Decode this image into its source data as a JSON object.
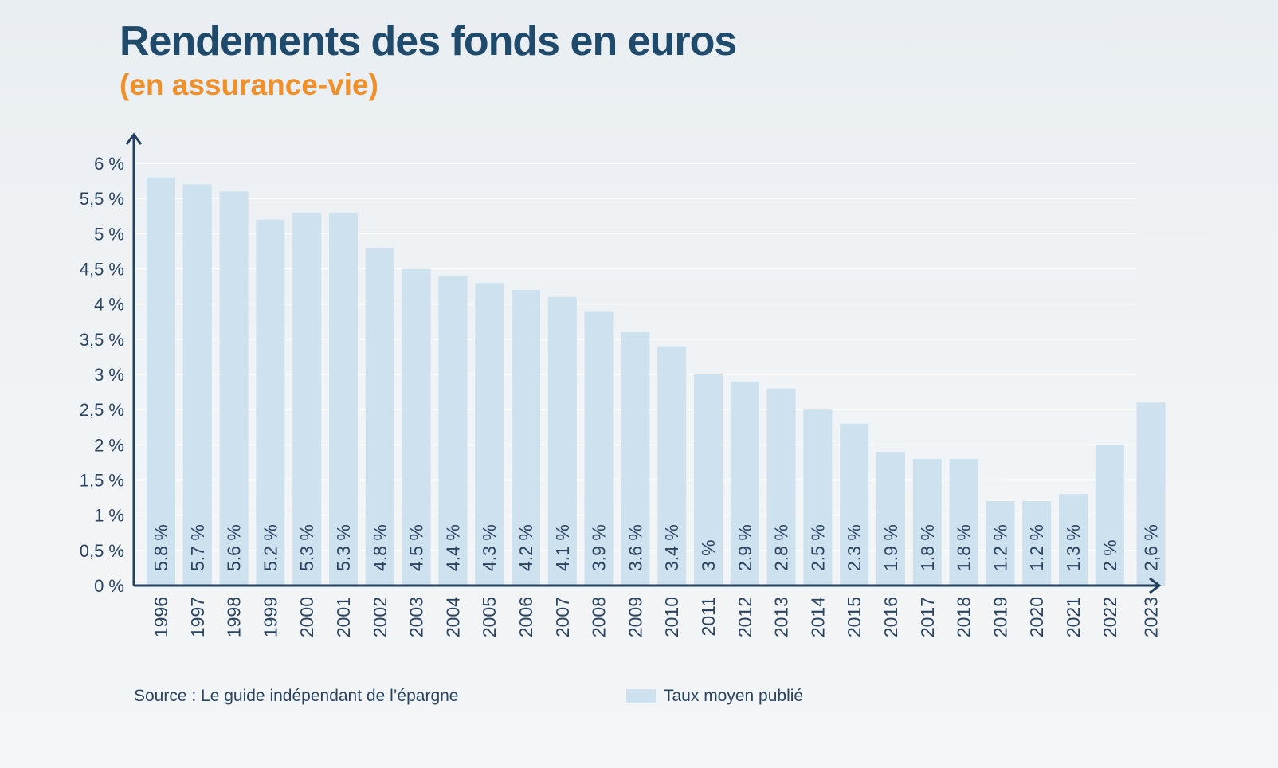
{
  "title": "Rendements des fonds en euros",
  "subtitle": "(en assurance-vie)",
  "source": "Source : Le guide indépendant de l’épargne",
  "legend_label": "Taux moyen publié",
  "colors": {
    "title": "#1f4a6b",
    "subtitle": "#f0902a",
    "bar": "#cde1ef",
    "axis": "#24415f",
    "text": "#2a4460",
    "grid": "#ffffff"
  },
  "chart_data": {
    "type": "bar",
    "title": "Rendements des fonds en euros",
    "subtitle": "(en assurance-vie)",
    "xlabel": "",
    "ylabel": "",
    "ylim": [
      0,
      6
    ],
    "grid": true,
    "legend": "bottom",
    "y_ticks": [
      0,
      0.5,
      1,
      1.5,
      2,
      2.5,
      3,
      3.5,
      4,
      4.5,
      5,
      5.5,
      6
    ],
    "y_tick_labels": [
      "0 %",
      "0,5 %",
      "1 %",
      "1,5 %",
      "2 %",
      "2,5 %",
      "3 %",
      "3,5 %",
      "4 %",
      "4,5 %",
      "5 %",
      "5,5 %",
      "6 %"
    ],
    "categories": [
      "1996",
      "1997",
      "1998",
      "1999",
      "2000",
      "2001",
      "2002",
      "2003",
      "2004",
      "2005",
      "2006",
      "2007",
      "2008",
      "2009",
      "2010",
      "2011",
      "2012",
      "2013",
      "2014",
      "2015",
      "2016",
      "2017",
      "2018",
      "2019",
      "2020",
      "2021",
      "2022",
      "2023"
    ],
    "series": [
      {
        "name": "Taux moyen publié",
        "values": [
          5.8,
          5.7,
          5.6,
          5.2,
          5.3,
          5.3,
          4.8,
          4.5,
          4.4,
          4.3,
          4.2,
          4.1,
          3.9,
          3.6,
          3.4,
          3,
          2.9,
          2.8,
          2.5,
          2.3,
          1.9,
          1.8,
          1.8,
          1.2,
          1.2,
          1.3,
          2,
          2.6
        ],
        "labels": [
          "5.8 %",
          "5.7 %",
          "5.6 %",
          "5.2 %",
          "5.3 %",
          "5.3 %",
          "4.8 %",
          "4.5 %",
          "4.4 %",
          "4.3 %",
          "4.2 %",
          "4.1 %",
          "3.9 %",
          "3.6 %",
          "3.4 %",
          "3 %",
          "2.9 %",
          "2.8 %",
          "2.5 %",
          "2.3 %",
          "1.9 %",
          "1.8 %",
          "1.8 %",
          "1.2 %",
          "1.2 %",
          "1.3 %",
          "2 %",
          "2,6 %"
        ]
      }
    ]
  }
}
